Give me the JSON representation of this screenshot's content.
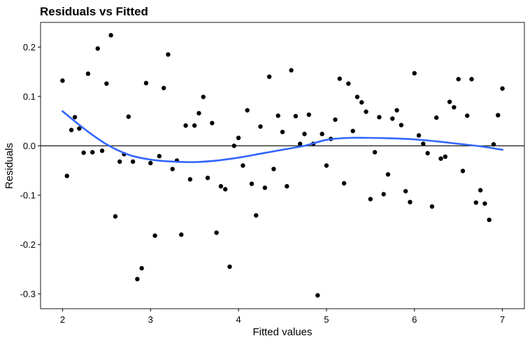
{
  "chart_data": {
    "type": "scatter",
    "title": "Residuals vs Fitted",
    "xlabel": "Fitted values",
    "ylabel": "Residuals",
    "xlim": [
      1.75,
      7.25
    ],
    "ylim": [
      -0.33,
      0.25
    ],
    "x_ticks": [
      2,
      3,
      4,
      5,
      6,
      7
    ],
    "y_ticks": [
      0.2,
      0.1,
      0.0,
      -0.1,
      -0.2,
      -0.3
    ],
    "x_tick_labels": [
      "2",
      "3",
      "4",
      "5",
      "6",
      "7"
    ],
    "y_tick_labels": [
      "0.2",
      "0.1",
      "0.0",
      "-0.1",
      "-0.2",
      "-0.3"
    ],
    "grid": false,
    "reference_line_y": 0,
    "point_color": "#000000",
    "smooth_color": "#3366FF",
    "points": [
      {
        "x": 2.0,
        "y": 0.132
      },
      {
        "x": 2.05,
        "y": -0.061
      },
      {
        "x": 2.1,
        "y": 0.032
      },
      {
        "x": 2.14,
        "y": 0.058
      },
      {
        "x": 2.19,
        "y": 0.035
      },
      {
        "x": 2.24,
        "y": -0.014
      },
      {
        "x": 2.29,
        "y": 0.146
      },
      {
        "x": 2.34,
        "y": -0.013
      },
      {
        "x": 2.4,
        "y": 0.197
      },
      {
        "x": 2.45,
        "y": -0.01
      },
      {
        "x": 2.5,
        "y": 0.126
      },
      {
        "x": 2.55,
        "y": 0.224
      },
      {
        "x": 2.6,
        "y": -0.143
      },
      {
        "x": 2.65,
        "y": -0.032
      },
      {
        "x": 2.7,
        "y": -0.017
      },
      {
        "x": 2.75,
        "y": 0.059
      },
      {
        "x": 2.8,
        "y": -0.032
      },
      {
        "x": 2.85,
        "y": -0.27
      },
      {
        "x": 2.9,
        "y": -0.248
      },
      {
        "x": 2.95,
        "y": 0.127
      },
      {
        "x": 3.0,
        "y": -0.035
      },
      {
        "x": 3.05,
        "y": -0.182
      },
      {
        "x": 3.1,
        "y": -0.021
      },
      {
        "x": 3.15,
        "y": 0.117
      },
      {
        "x": 3.2,
        "y": 0.185
      },
      {
        "x": 3.25,
        "y": -0.047
      },
      {
        "x": 3.3,
        "y": -0.03
      },
      {
        "x": 3.35,
        "y": -0.18
      },
      {
        "x": 3.4,
        "y": 0.041
      },
      {
        "x": 3.45,
        "y": -0.068
      },
      {
        "x": 3.5,
        "y": 0.041
      },
      {
        "x": 3.55,
        "y": 0.066
      },
      {
        "x": 3.6,
        "y": 0.099
      },
      {
        "x": 3.65,
        "y": -0.065
      },
      {
        "x": 3.7,
        "y": 0.046
      },
      {
        "x": 3.75,
        "y": -0.176
      },
      {
        "x": 3.8,
        "y": -0.082
      },
      {
        "x": 3.85,
        "y": -0.088
      },
      {
        "x": 3.9,
        "y": -0.245
      },
      {
        "x": 3.95,
        "y": 0.0
      },
      {
        "x": 4.0,
        "y": 0.016
      },
      {
        "x": 4.05,
        "y": -0.04
      },
      {
        "x": 4.1,
        "y": 0.072
      },
      {
        "x": 4.15,
        "y": -0.077
      },
      {
        "x": 4.2,
        "y": -0.141
      },
      {
        "x": 4.25,
        "y": 0.039
      },
      {
        "x": 4.3,
        "y": -0.085
      },
      {
        "x": 4.35,
        "y": 0.14
      },
      {
        "x": 4.4,
        "y": -0.047
      },
      {
        "x": 4.45,
        "y": 0.061
      },
      {
        "x": 4.5,
        "y": 0.028
      },
      {
        "x": 4.55,
        "y": -0.082
      },
      {
        "x": 4.6,
        "y": 0.153
      },
      {
        "x": 4.65,
        "y": 0.06
      },
      {
        "x": 4.7,
        "y": 0.004
      },
      {
        "x": 4.75,
        "y": 0.024
      },
      {
        "x": 4.8,
        "y": 0.063
      },
      {
        "x": 4.85,
        "y": 0.004
      },
      {
        "x": 4.9,
        "y": -0.303
      },
      {
        "x": 4.95,
        "y": 0.024
      },
      {
        "x": 5.0,
        "y": -0.04
      },
      {
        "x": 5.05,
        "y": 0.014
      },
      {
        "x": 5.1,
        "y": 0.053
      },
      {
        "x": 5.15,
        "y": 0.136
      },
      {
        "x": 5.2,
        "y": -0.076
      },
      {
        "x": 5.25,
        "y": 0.126
      },
      {
        "x": 5.3,
        "y": 0.03
      },
      {
        "x": 5.35,
        "y": 0.099
      },
      {
        "x": 5.4,
        "y": 0.088
      },
      {
        "x": 5.45,
        "y": 0.069
      },
      {
        "x": 5.5,
        "y": -0.108
      },
      {
        "x": 5.55,
        "y": -0.013
      },
      {
        "x": 5.6,
        "y": 0.058
      },
      {
        "x": 5.65,
        "y": -0.098
      },
      {
        "x": 5.7,
        "y": -0.058
      },
      {
        "x": 5.75,
        "y": 0.055
      },
      {
        "x": 5.8,
        "y": 0.072
      },
      {
        "x": 5.85,
        "y": 0.042
      },
      {
        "x": 5.9,
        "y": -0.092
      },
      {
        "x": 5.95,
        "y": -0.114
      },
      {
        "x": 6.0,
        "y": 0.147
      },
      {
        "x": 6.05,
        "y": 0.021
      },
      {
        "x": 6.1,
        "y": 0.004
      },
      {
        "x": 6.15,
        "y": -0.015
      },
      {
        "x": 6.2,
        "y": -0.123
      },
      {
        "x": 6.25,
        "y": 0.057
      },
      {
        "x": 6.3,
        "y": -0.026
      },
      {
        "x": 6.35,
        "y": -0.022
      },
      {
        "x": 6.4,
        "y": 0.089
      },
      {
        "x": 6.45,
        "y": 0.078
      },
      {
        "x": 6.5,
        "y": 0.135
      },
      {
        "x": 6.55,
        "y": -0.051
      },
      {
        "x": 6.6,
        "y": 0.061
      },
      {
        "x": 6.65,
        "y": 0.135
      },
      {
        "x": 6.7,
        "y": -0.115
      },
      {
        "x": 6.75,
        "y": -0.09
      },
      {
        "x": 6.8,
        "y": -0.117
      },
      {
        "x": 6.85,
        "y": -0.15
      },
      {
        "x": 6.9,
        "y": 0.003
      },
      {
        "x": 6.95,
        "y": 0.062
      },
      {
        "x": 7.0,
        "y": 0.116
      }
    ],
    "smooth_line": [
      {
        "x": 2.0,
        "y": 0.07
      },
      {
        "x": 2.25,
        "y": 0.034
      },
      {
        "x": 2.5,
        "y": 0.003
      },
      {
        "x": 2.75,
        "y": -0.018
      },
      {
        "x": 3.0,
        "y": -0.028
      },
      {
        "x": 3.25,
        "y": -0.032
      },
      {
        "x": 3.5,
        "y": -0.033
      },
      {
        "x": 3.75,
        "y": -0.03
      },
      {
        "x": 4.0,
        "y": -0.024
      },
      {
        "x": 4.25,
        "y": -0.016
      },
      {
        "x": 4.5,
        "y": -0.008
      },
      {
        "x": 4.75,
        "y": 0.0
      },
      {
        "x": 5.0,
        "y": 0.012
      },
      {
        "x": 5.25,
        "y": 0.016
      },
      {
        "x": 5.5,
        "y": 0.016
      },
      {
        "x": 5.75,
        "y": 0.015
      },
      {
        "x": 6.0,
        "y": 0.013
      },
      {
        "x": 6.25,
        "y": 0.009
      },
      {
        "x": 6.5,
        "y": 0.004
      },
      {
        "x": 6.75,
        "y": -0.001
      },
      {
        "x": 7.0,
        "y": -0.008
      }
    ]
  }
}
